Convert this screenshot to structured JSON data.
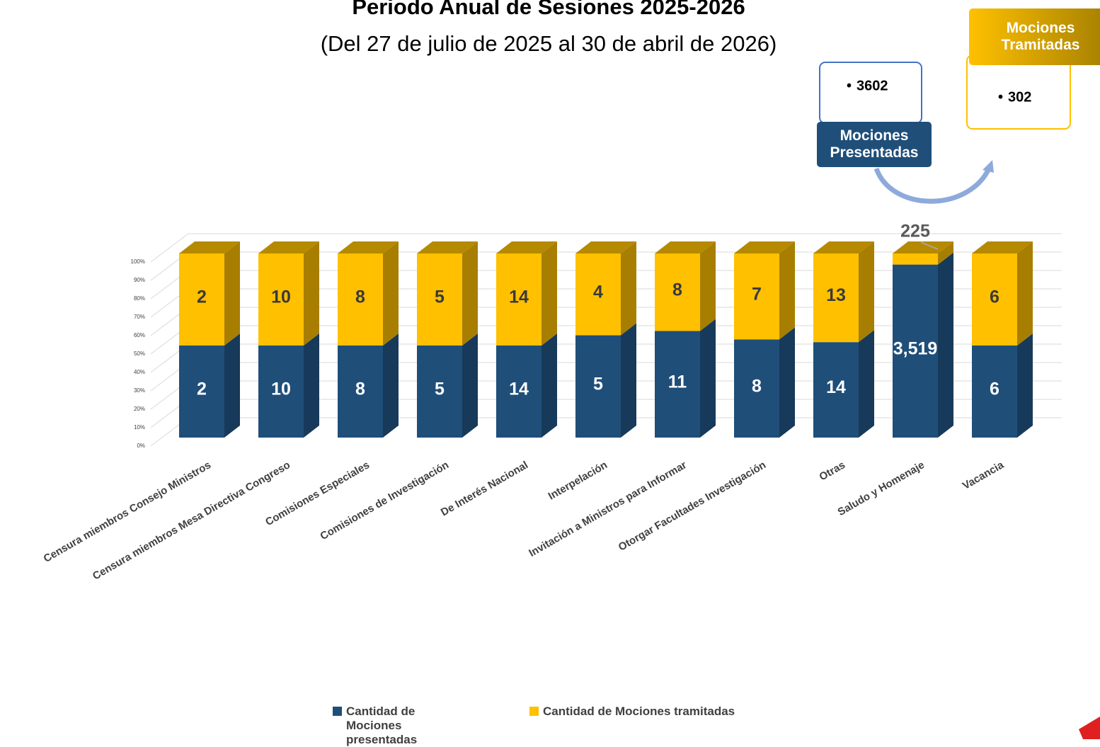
{
  "chart_data": {
    "type": "stacked_percent_bar_3d",
    "title": "Periodo Anual de Sesiones 2025-2026",
    "subtitle": "(Del 27 de julio de 2025 al 30 de abril de 2026)",
    "categories": [
      "Censura miembros Consejo Ministros",
      "Censura miembros Mesa Directiva Congreso",
      "Comisiones Especiales",
      "Comisiones de Investigación",
      "De Interés Nacional",
      "Interpelación",
      "Invitación a Ministros para Informar",
      "Otorgar Facultades Investigación",
      "Otras",
      "Saludo y Homenaje",
      "Vacancia"
    ],
    "series": [
      {
        "name": "Cantidad de Mociones presentadas",
        "color": "#1f4e79",
        "side_color": "#173a5a",
        "values": [
          2,
          10,
          8,
          5,
          14,
          5,
          11,
          8,
          14,
          3519,
          6
        ],
        "value_labels": [
          "2",
          "10",
          "8",
          "5",
          "14",
          "5",
          "11",
          "8",
          "14",
          "3,519",
          "6"
        ]
      },
      {
        "name": "Cantidad de Mociones tramitadas",
        "color": "#ffc000",
        "side_color": "#a87e00",
        "values": [
          2,
          10,
          8,
          5,
          14,
          4,
          8,
          7,
          13,
          225,
          6
        ]
      }
    ],
    "ylim": [
      0,
      100
    ],
    "yticks": [
      {
        "value": 0,
        "label": "0%"
      },
      {
        "value": 10,
        "label": "10%"
      },
      {
        "value": 20,
        "label": "20%"
      },
      {
        "value": 30,
        "label": "30%"
      },
      {
        "value": 40,
        "label": "40%"
      },
      {
        "value": 50,
        "label": "50%"
      },
      {
        "value": 60,
        "label": "60%"
      },
      {
        "value": 70,
        "label": "70%"
      },
      {
        "value": 80,
        "label": "80%"
      },
      {
        "value": 90,
        "label": "90%"
      },
      {
        "value": 100,
        "label": "100%"
      }
    ],
    "grid": true,
    "callouts": {
      "presented": {
        "value": 3602,
        "label": "Mociones Presentadas"
      },
      "processed": {
        "value": 302,
        "label": "Mociones Tramitadas"
      }
    }
  }
}
